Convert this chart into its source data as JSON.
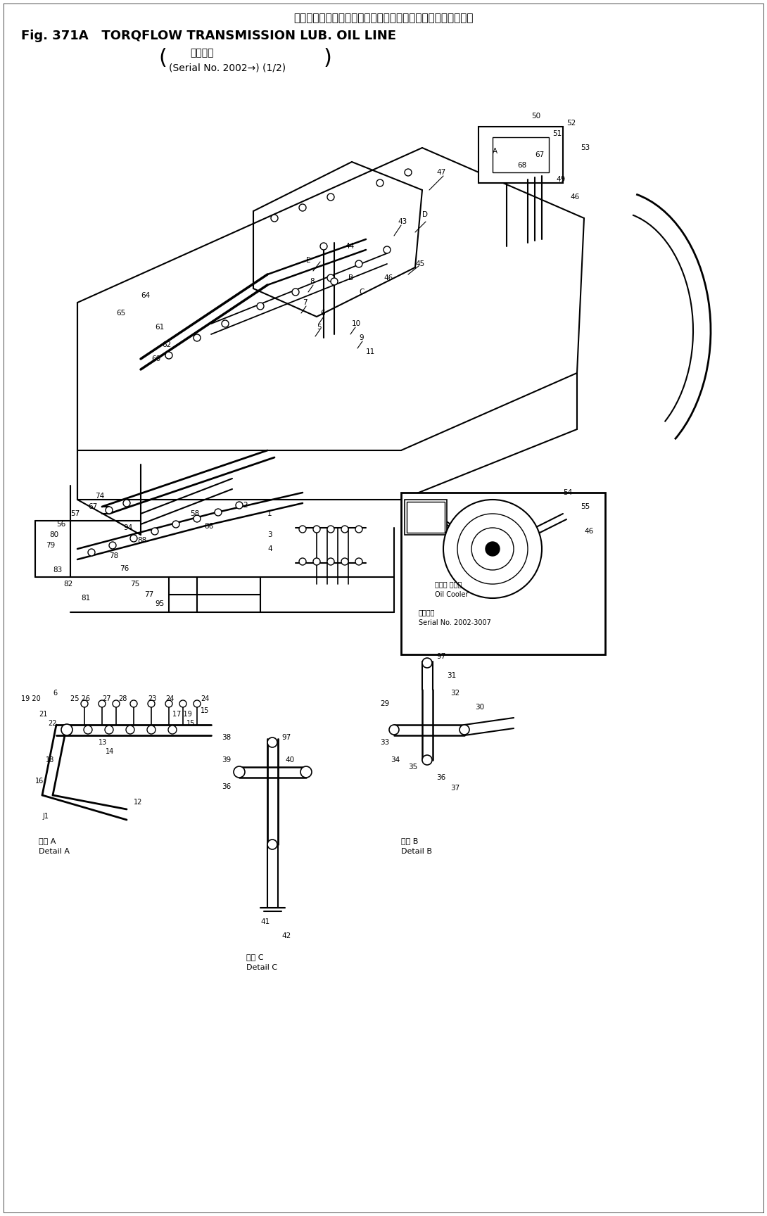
{
  "title_japanese": "トルクフロー　トランスミッション　ルーブ　オイル　ライン",
  "title_line1": "Fig. 371A   TORQFLOW TRANSMISSION LUB. OIL LINE",
  "title_line2": "適用号機",
  "title_line3": "(Serial No. 2002→) (1/2)",
  "bg_color": "#ffffff",
  "line_color": "#000000",
  "fig_width": 10.9,
  "fig_height": 17.28,
  "dpi": 100
}
